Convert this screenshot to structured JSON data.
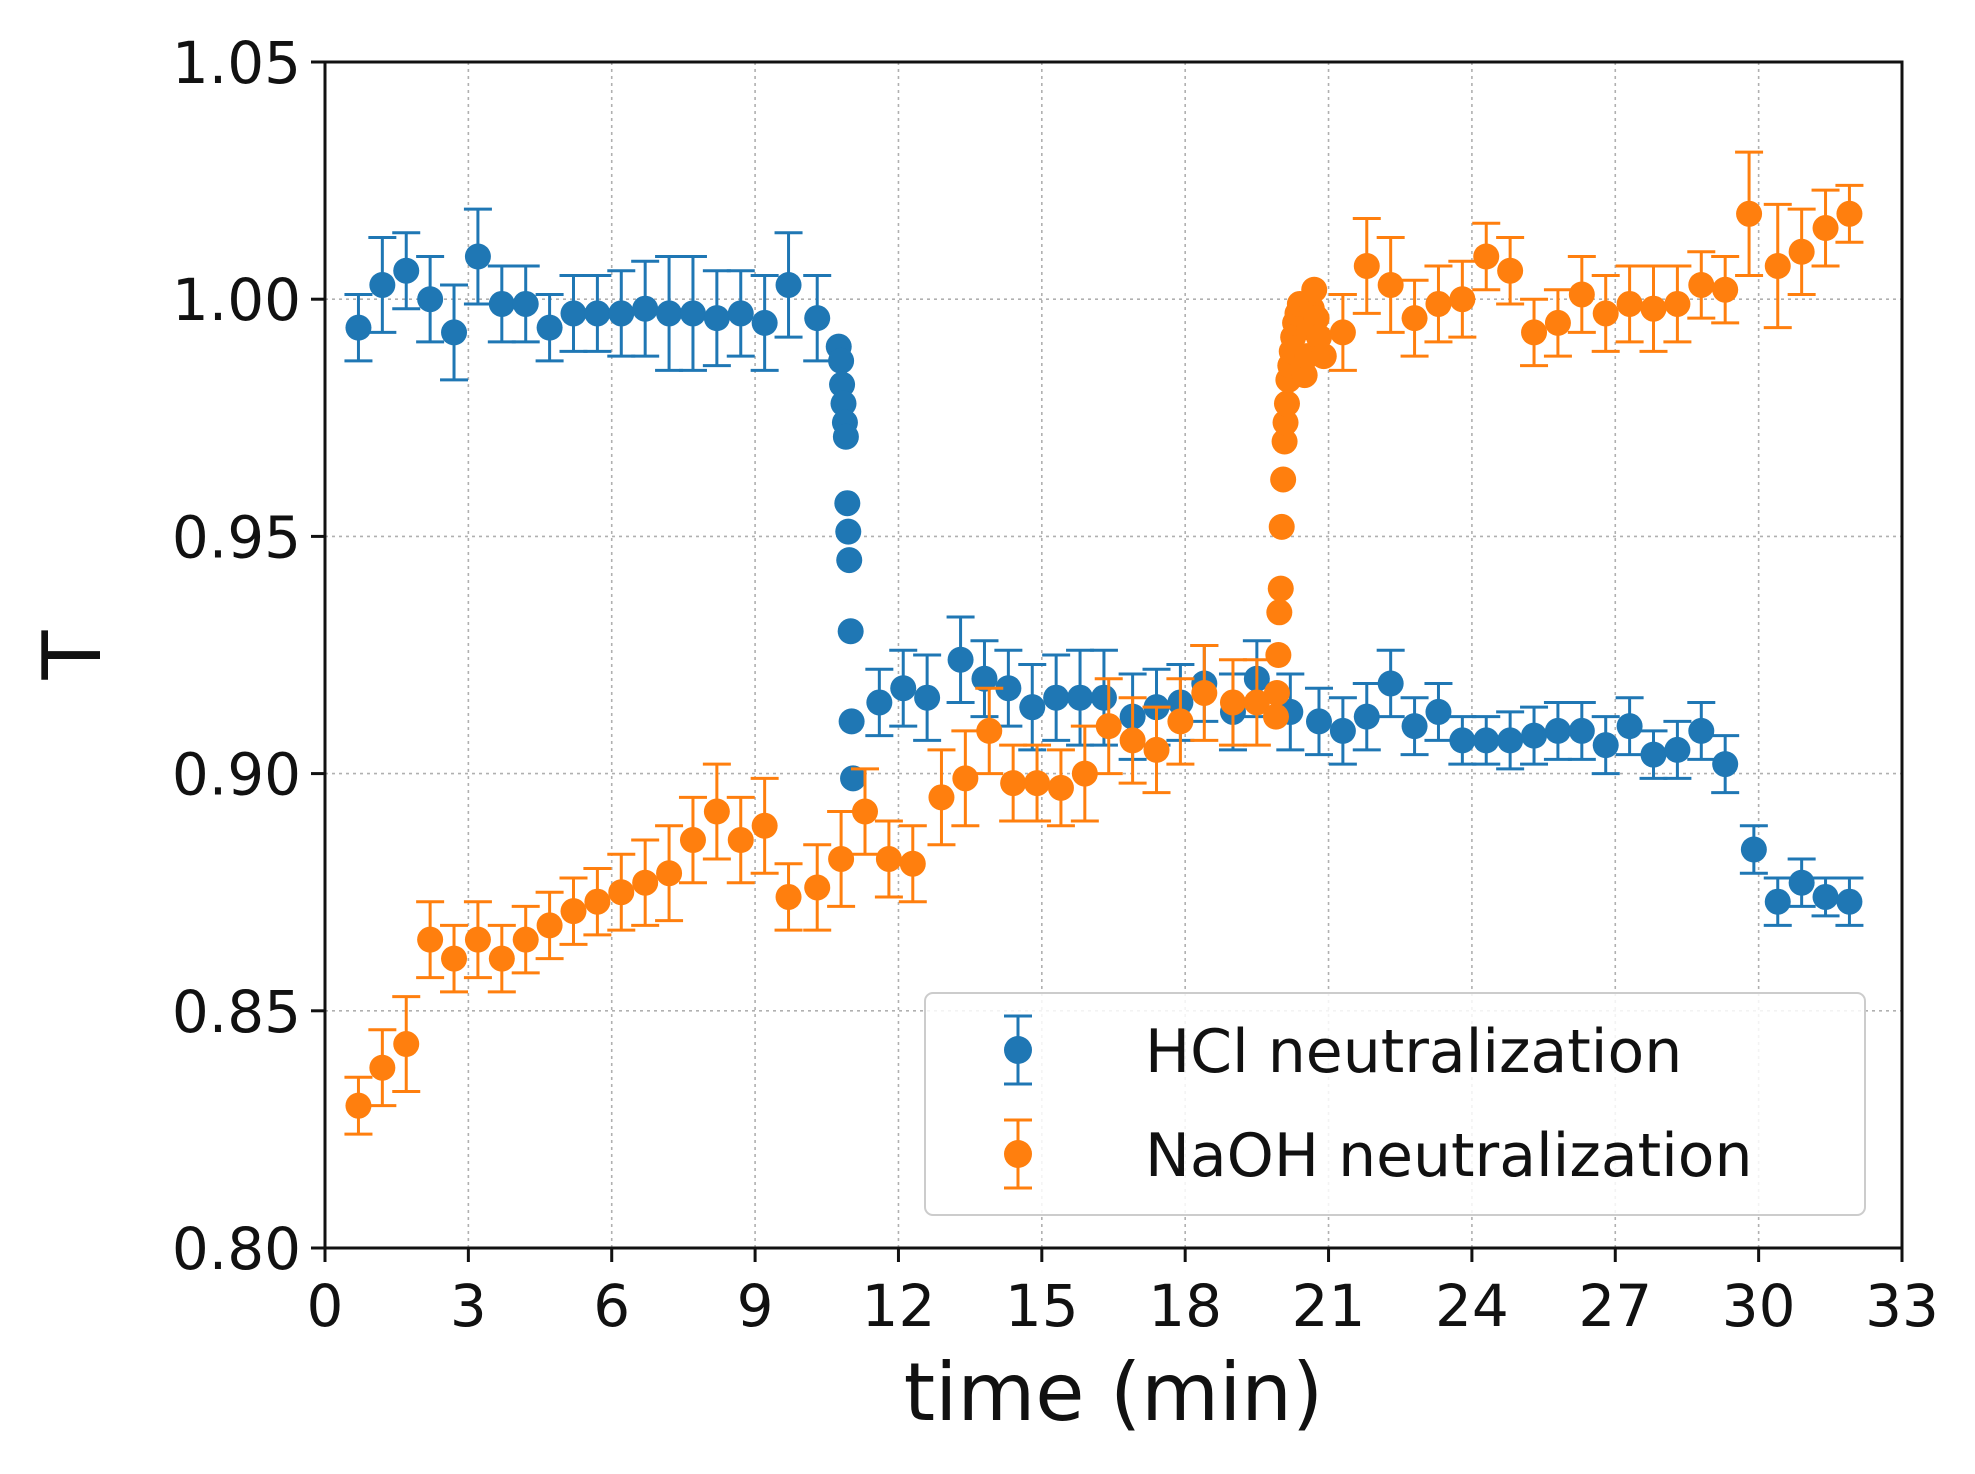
{
  "chart_data": {
    "type": "scatter",
    "title": "",
    "xlabel": "time (min)",
    "ylabel": "T",
    "xlim": [
      0,
      33
    ],
    "ylim": [
      0.8,
      1.05
    ],
    "xticks": [
      "0",
      "3",
      "6",
      "9",
      "12",
      "15",
      "18",
      "21",
      "24",
      "27",
      "30",
      "33"
    ],
    "yticks": [
      "0.80",
      "0.85",
      "0.90",
      "0.95",
      "1.00",
      "1.05"
    ],
    "grid": true,
    "legend_position": "lower-right",
    "colors": {
      "hcl": "#1f77b4",
      "naoh": "#ff7f0e"
    },
    "series": [
      {
        "name": "HCl neutralization",
        "color": "#1f77b4",
        "points": [
          [
            0.7,
            0.994,
            0.007
          ],
          [
            1.2,
            1.003,
            0.01
          ],
          [
            1.7,
            1.006,
            0.008
          ],
          [
            2.2,
            1.0,
            0.009
          ],
          [
            2.7,
            0.993,
            0.01
          ],
          [
            3.2,
            1.009,
            0.01
          ],
          [
            3.7,
            0.999,
            0.008
          ],
          [
            4.2,
            0.999,
            0.008
          ],
          [
            4.7,
            0.994,
            0.007
          ],
          [
            5.2,
            0.997,
            0.008
          ],
          [
            5.7,
            0.997,
            0.008
          ],
          [
            6.2,
            0.997,
            0.009
          ],
          [
            6.7,
            0.998,
            0.01
          ],
          [
            7.2,
            0.997,
            0.012
          ],
          [
            7.7,
            0.997,
            0.012
          ],
          [
            8.2,
            0.996,
            0.01
          ],
          [
            8.7,
            0.997,
            0.009
          ],
          [
            9.2,
            0.995,
            0.01
          ],
          [
            9.7,
            1.003,
            0.011
          ],
          [
            10.3,
            0.996,
            0.009
          ],
          [
            10.75,
            0.99,
            0.001
          ],
          [
            10.8,
            0.987,
            0.001
          ],
          [
            10.82,
            0.982,
            0.001
          ],
          [
            10.85,
            0.978,
            0.001
          ],
          [
            10.88,
            0.974,
            0.001
          ],
          [
            10.9,
            0.971,
            0.001
          ],
          [
            10.93,
            0.957,
            0.001
          ],
          [
            10.95,
            0.951,
            0.001
          ],
          [
            10.97,
            0.945,
            0.001
          ],
          [
            11.0,
            0.93,
            0.001
          ],
          [
            11.02,
            0.911,
            0.001
          ],
          [
            11.05,
            0.899,
            0.001
          ],
          [
            11.6,
            0.915,
            0.007
          ],
          [
            12.1,
            0.918,
            0.008
          ],
          [
            12.6,
            0.916,
            0.009
          ],
          [
            13.3,
            0.924,
            0.009
          ],
          [
            13.8,
            0.92,
            0.008
          ],
          [
            14.3,
            0.918,
            0.008
          ],
          [
            14.8,
            0.914,
            0.009
          ],
          [
            15.3,
            0.916,
            0.009
          ],
          [
            15.8,
            0.916,
            0.01
          ],
          [
            16.3,
            0.916,
            0.01
          ],
          [
            16.9,
            0.912,
            0.009
          ],
          [
            17.4,
            0.914,
            0.008
          ],
          [
            17.9,
            0.915,
            0.008
          ],
          [
            18.4,
            0.919,
            0.008
          ],
          [
            19.0,
            0.913,
            0.008
          ],
          [
            19.5,
            0.92,
            0.008
          ],
          [
            20.2,
            0.913,
            0.008
          ],
          [
            20.8,
            0.911,
            0.007
          ],
          [
            21.3,
            0.909,
            0.007
          ],
          [
            21.8,
            0.912,
            0.007
          ],
          [
            22.3,
            0.919,
            0.007
          ],
          [
            22.8,
            0.91,
            0.006
          ],
          [
            23.3,
            0.913,
            0.006
          ],
          [
            23.8,
            0.907,
            0.005
          ],
          [
            24.3,
            0.907,
            0.005
          ],
          [
            24.8,
            0.907,
            0.006
          ],
          [
            25.3,
            0.908,
            0.006
          ],
          [
            25.8,
            0.909,
            0.006
          ],
          [
            26.3,
            0.909,
            0.006
          ],
          [
            26.8,
            0.906,
            0.006
          ],
          [
            27.3,
            0.91,
            0.006
          ],
          [
            27.8,
            0.904,
            0.005
          ],
          [
            28.3,
            0.905,
            0.006
          ],
          [
            28.8,
            0.909,
            0.006
          ],
          [
            29.3,
            0.902,
            0.006
          ],
          [
            29.9,
            0.884,
            0.005
          ],
          [
            30.4,
            0.873,
            0.005
          ],
          [
            30.9,
            0.877,
            0.005
          ],
          [
            31.4,
            0.874,
            0.004
          ],
          [
            31.9,
            0.873,
            0.005
          ]
        ]
      },
      {
        "name": "NaOH neutralization",
        "color": "#ff7f0e",
        "points": [
          [
            0.7,
            0.83,
            0.006
          ],
          [
            1.2,
            0.838,
            0.008
          ],
          [
            1.7,
            0.843,
            0.01
          ],
          [
            2.2,
            0.865,
            0.008
          ],
          [
            2.7,
            0.861,
            0.007
          ],
          [
            3.2,
            0.865,
            0.008
          ],
          [
            3.7,
            0.861,
            0.007
          ],
          [
            4.2,
            0.865,
            0.007
          ],
          [
            4.7,
            0.868,
            0.007
          ],
          [
            5.2,
            0.871,
            0.007
          ],
          [
            5.7,
            0.873,
            0.007
          ],
          [
            6.2,
            0.875,
            0.008
          ],
          [
            6.7,
            0.877,
            0.009
          ],
          [
            7.2,
            0.879,
            0.01
          ],
          [
            7.7,
            0.886,
            0.009
          ],
          [
            8.2,
            0.892,
            0.01
          ],
          [
            8.7,
            0.886,
            0.009
          ],
          [
            9.2,
            0.889,
            0.01
          ],
          [
            9.7,
            0.874,
            0.007
          ],
          [
            10.3,
            0.876,
            0.009
          ],
          [
            10.8,
            0.882,
            0.01
          ],
          [
            11.3,
            0.892,
            0.009
          ],
          [
            11.8,
            0.882,
            0.008
          ],
          [
            12.3,
            0.881,
            0.008
          ],
          [
            12.9,
            0.895,
            0.01
          ],
          [
            13.4,
            0.899,
            0.01
          ],
          [
            13.9,
            0.909,
            0.009
          ],
          [
            14.4,
            0.898,
            0.008
          ],
          [
            14.9,
            0.898,
            0.008
          ],
          [
            15.4,
            0.897,
            0.008
          ],
          [
            15.9,
            0.9,
            0.01
          ],
          [
            16.4,
            0.91,
            0.01
          ],
          [
            16.9,
            0.907,
            0.009
          ],
          [
            17.4,
            0.905,
            0.009
          ],
          [
            17.9,
            0.911,
            0.009
          ],
          [
            18.4,
            0.917,
            0.01
          ],
          [
            19.0,
            0.915,
            0.009
          ],
          [
            19.5,
            0.915,
            0.009
          ],
          [
            19.9,
            0.912,
            0.001
          ],
          [
            19.92,
            0.917,
            0.001
          ],
          [
            19.95,
            0.925,
            0.001
          ],
          [
            19.97,
            0.934,
            0.001
          ],
          [
            20.0,
            0.939,
            0.001
          ],
          [
            20.02,
            0.952,
            0.001
          ],
          [
            20.05,
            0.962,
            0.001
          ],
          [
            20.08,
            0.97,
            0.001
          ],
          [
            20.1,
            0.974,
            0.001
          ],
          [
            20.13,
            0.978,
            0.001
          ],
          [
            20.16,
            0.983,
            0.001
          ],
          [
            20.2,
            0.986,
            0.001
          ],
          [
            20.23,
            0.989,
            0.001
          ],
          [
            20.26,
            0.992,
            0.001
          ],
          [
            20.3,
            0.995,
            0.001
          ],
          [
            20.35,
            0.997,
            0.001
          ],
          [
            20.4,
            0.999,
            0.001
          ],
          [
            20.5,
            0.984,
            0.001
          ],
          [
            20.55,
            0.988,
            0.001
          ],
          [
            20.6,
            0.994,
            0.001
          ],
          [
            20.65,
            0.998,
            0.001
          ],
          [
            20.7,
            1.002,
            0.001
          ],
          [
            20.75,
            0.996,
            0.001
          ],
          [
            20.8,
            0.992,
            0.001
          ],
          [
            20.9,
            0.988,
            0.001
          ],
          [
            21.3,
            0.993,
            0.008
          ],
          [
            21.8,
            1.007,
            0.01
          ],
          [
            22.3,
            1.003,
            0.01
          ],
          [
            22.8,
            0.996,
            0.008
          ],
          [
            23.3,
            0.999,
            0.008
          ],
          [
            23.8,
            1.0,
            0.008
          ],
          [
            24.3,
            1.009,
            0.007
          ],
          [
            24.8,
            1.006,
            0.007
          ],
          [
            25.3,
            0.993,
            0.007
          ],
          [
            25.8,
            0.995,
            0.007
          ],
          [
            26.3,
            1.001,
            0.008
          ],
          [
            26.8,
            0.997,
            0.008
          ],
          [
            27.3,
            0.999,
            0.008
          ],
          [
            27.8,
            0.998,
            0.009
          ],
          [
            28.3,
            0.999,
            0.008
          ],
          [
            28.8,
            1.003,
            0.007
          ],
          [
            29.3,
            1.002,
            0.007
          ],
          [
            29.8,
            1.018,
            0.013
          ],
          [
            30.4,
            1.007,
            0.013
          ],
          [
            30.9,
            1.01,
            0.009
          ],
          [
            31.4,
            1.015,
            0.008
          ],
          [
            31.9,
            1.018,
            0.006
          ]
        ]
      }
    ]
  }
}
